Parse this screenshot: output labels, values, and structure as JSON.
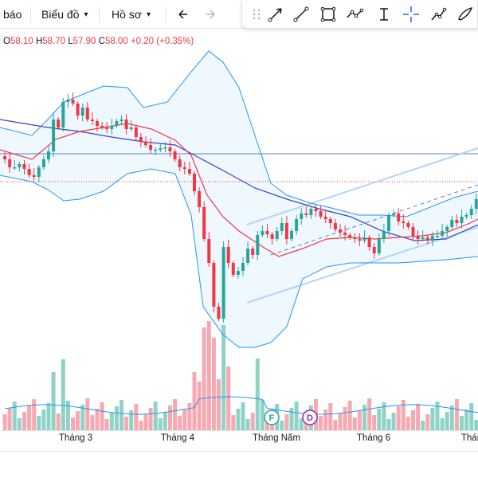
{
  "toolbar": {
    "alert_label": "báo",
    "chart_label": "Biểu đồ",
    "profile_label": "Hồ sơ"
  },
  "drawing_tools": [
    "drag-handle-icon",
    "arrow-tool-icon",
    "trend-line-icon",
    "rectangle-icon",
    "zigzag-icon",
    "date-range-icon",
    "crosshair-icon",
    "path-icon",
    "brush-icon"
  ],
  "legend": {
    "o_label": "O",
    "o_value": "58.10",
    "h_label": "H",
    "h_value": "58.70",
    "l_label": "L",
    "l_value": "57.90",
    "c_label": "C",
    "c_value": "58.00",
    "change": "+0.20 (+0.35%)"
  },
  "xaxis": {
    "labels": [
      "Tháng 3",
      "Tháng 4",
      "Tháng Năm",
      "Tháng 6",
      "Thán"
    ]
  },
  "markers": {
    "f_label": "F",
    "d_label": "D"
  },
  "colors": {
    "up": "#26a69a",
    "down": "#f23645",
    "bb_band": "#2196f3",
    "ma_fast": "#f23645",
    "ma_slow": "#3f3fc6",
    "channel": "#90bff9",
    "hline": "#5b7fd1",
    "current_price": "#f23645",
    "vol_up": "#8fd3c6",
    "vol_down": "#f7a8b0"
  }
}
